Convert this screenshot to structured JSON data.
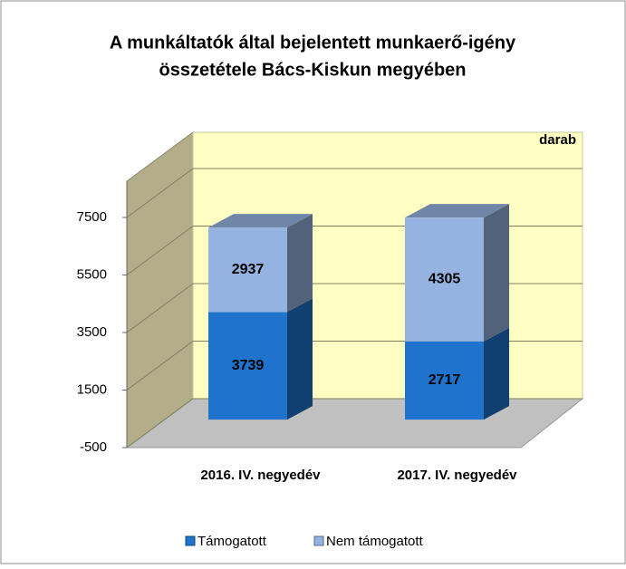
{
  "chart_data": {
    "type": "bar3d_stacked",
    "title": [
      "A munkáltatók által bejelentett munkaerő-igény",
      "összetétele Bács-Kiskun megyében"
    ],
    "unit_label": "darab",
    "categories": [
      "2016. IV. negyedév",
      "2017. IV. negyedév"
    ],
    "series": [
      {
        "name": "Támogatott",
        "color": "#1f73cc",
        "values": [
          3739,
          2717
        ]
      },
      {
        "name": "Nem támogatott",
        "color": "#95b3e0",
        "values": [
          2937,
          4305
        ]
      }
    ],
    "ylim": [
      -500,
      9500
    ],
    "yticks": [
      -500,
      1500,
      3500,
      5500,
      7500
    ],
    "grid": true,
    "legend": "bottom"
  }
}
